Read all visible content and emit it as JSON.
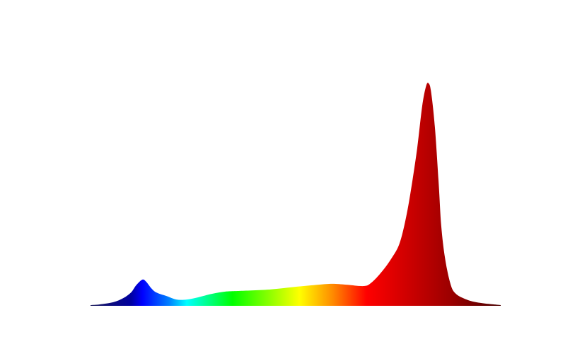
{
  "chart_data": {
    "type": "area",
    "title": "",
    "xlabel": "",
    "ylabel": "",
    "x_unit_estimated": "nm",
    "xlim": [
      409,
      733
    ],
    "ylim": [
      0,
      1
    ],
    "grid": false,
    "axes_visible": false,
    "legend": "none",
    "x": [
      409,
      416,
      427,
      435,
      441,
      445,
      450,
      453,
      457,
      461,
      469,
      477,
      485,
      494,
      505,
      516,
      527,
      550,
      572,
      589,
      600,
      611,
      625,
      631,
      639,
      647,
      653,
      658,
      662,
      667,
      671,
      674,
      676,
      678,
      681,
      684,
      686,
      689,
      693,
      697,
      706,
      717,
      733
    ],
    "values": [
      0,
      0.003,
      0.013,
      0.032,
      0.057,
      0.089,
      0.115,
      0.105,
      0.076,
      0.057,
      0.041,
      0.025,
      0.025,
      0.035,
      0.051,
      0.061,
      0.064,
      0.07,
      0.083,
      0.092,
      0.096,
      0.092,
      0.086,
      0.102,
      0.15,
      0.213,
      0.277,
      0.389,
      0.516,
      0.707,
      0.898,
      0.987,
      1.0,
      0.962,
      0.803,
      0.548,
      0.357,
      0.213,
      0.102,
      0.054,
      0.025,
      0.01,
      0
    ],
    "fill_gradient": [
      {
        "x": 409,
        "color": "#1a1a5a"
      },
      {
        "x": 441,
        "color": "#0000a0"
      },
      {
        "x": 450,
        "color": "#0000ff"
      },
      {
        "x": 471,
        "color": "#0080ff"
      },
      {
        "x": 485,
        "color": "#00ffff"
      },
      {
        "x": 521,
        "color": "#00ff00"
      },
      {
        "x": 574,
        "color": "#ffff00"
      },
      {
        "x": 600,
        "color": "#ff8c00"
      },
      {
        "x": 627,
        "color": "#ff0000"
      },
      {
        "x": 695,
        "color": "#990000"
      },
      {
        "x": 733,
        "color": "#4a0000"
      }
    ]
  }
}
